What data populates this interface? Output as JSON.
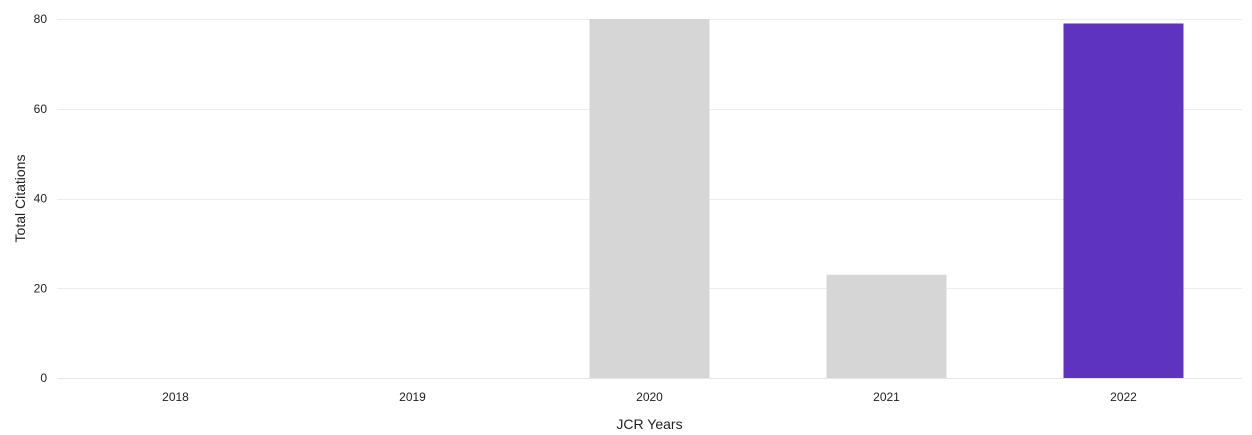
{
  "chart_data": {
    "type": "bar",
    "categories": [
      "2018",
      "2019",
      "2020",
      "2021",
      "2022"
    ],
    "values": [
      0,
      0,
      80,
      23,
      79
    ],
    "highlight_index": 4,
    "colors": {
      "default_bar": "#d6d6d6",
      "highlight_bar": "#5e33bf",
      "grid": "#ececec",
      "text": "#222222"
    },
    "xlabel": "JCR Years",
    "ylabel": "Total Citations",
    "ylim": [
      0,
      80
    ],
    "yticks": [
      0,
      20,
      40,
      60,
      80
    ],
    "grid": true
  }
}
